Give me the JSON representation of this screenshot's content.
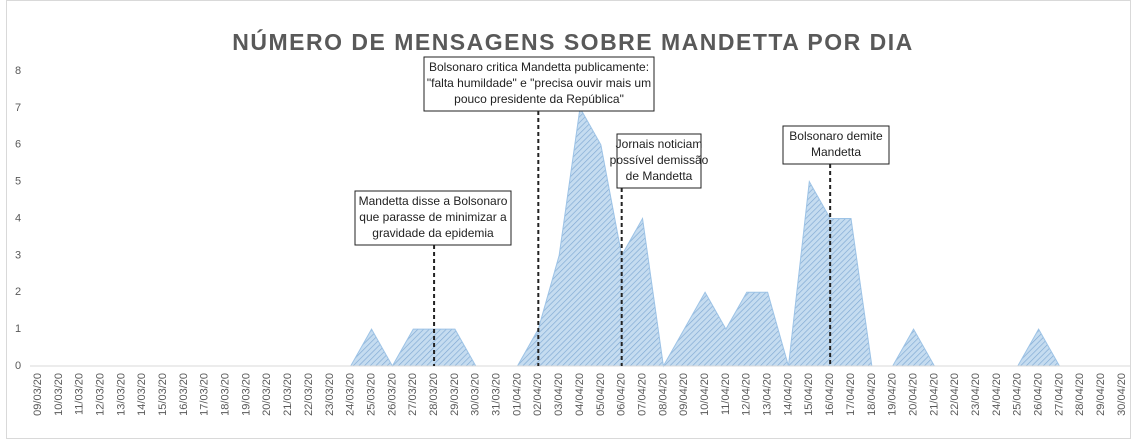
{
  "chart_data": {
    "type": "area",
    "title": "NÚMERO DE MENSAGENS SOBRE MANDETTA POR DIA",
    "categories": [
      "09/03/20",
      "10/03/20",
      "11/03/20",
      "12/03/20",
      "13/03/20",
      "14/03/20",
      "15/03/20",
      "16/03/20",
      "17/03/20",
      "18/03/20",
      "19/03/20",
      "20/03/20",
      "21/03/20",
      "22/03/20",
      "23/03/20",
      "24/03/20",
      "25/03/20",
      "26/03/20",
      "27/03/20",
      "28/03/20",
      "29/03/20",
      "30/03/20",
      "31/03/20",
      "01/04/20",
      "02/04/20",
      "03/04/20",
      "04/04/20",
      "05/04/20",
      "06/04/20",
      "07/04/20",
      "08/04/20",
      "09/04/20",
      "10/04/20",
      "11/04/20",
      "12/04/20",
      "13/04/20",
      "14/04/20",
      "15/04/20",
      "16/04/20",
      "17/04/20",
      "18/04/20",
      "19/04/20",
      "20/04/20",
      "21/04/20",
      "22/04/20",
      "23/04/20",
      "24/04/20",
      "25/04/20",
      "26/04/20",
      "27/04/20",
      "28/04/20",
      "29/04/20",
      "30/04/20"
    ],
    "values": [
      0,
      0,
      0,
      0,
      0,
      0,
      0,
      0,
      0,
      0,
      0,
      0,
      0,
      0,
      0,
      0,
      1,
      0,
      1,
      1,
      1,
      0,
      0,
      0,
      1,
      3,
      7,
      6,
      3,
      4,
      0,
      1,
      2,
      1,
      2,
      2,
      0,
      5,
      4,
      4,
      0,
      0,
      1,
      0,
      0,
      0,
      0,
      0,
      1,
      0,
      0,
      0,
      0
    ],
    "color": "#9dc3e6",
    "ylim": [
      0,
      8
    ],
    "yticks": [
      0,
      1,
      2,
      3,
      4,
      5,
      6,
      7,
      8
    ],
    "grid": false,
    "annotations": [
      {
        "x": "28/03/20",
        "text": [
          "Mandetta disse a Bolsonaro",
          "que parasse de minimizar a",
          "gravidade da epidemia"
        ]
      },
      {
        "x": "02/04/20",
        "text": [
          "Bolsonaro critica Mandetta publicamente:",
          "\"falta humildade\" e \"precisa ouvir mais um",
          "pouco presidente da República\""
        ]
      },
      {
        "x": "06/04/20",
        "text": [
          "Jornais noticiam",
          "possível demissão",
          "de Mandetta"
        ]
      },
      {
        "x": "16/04/20",
        "text": [
          "Bolsonaro demite",
          "Mandetta"
        ]
      }
    ]
  }
}
